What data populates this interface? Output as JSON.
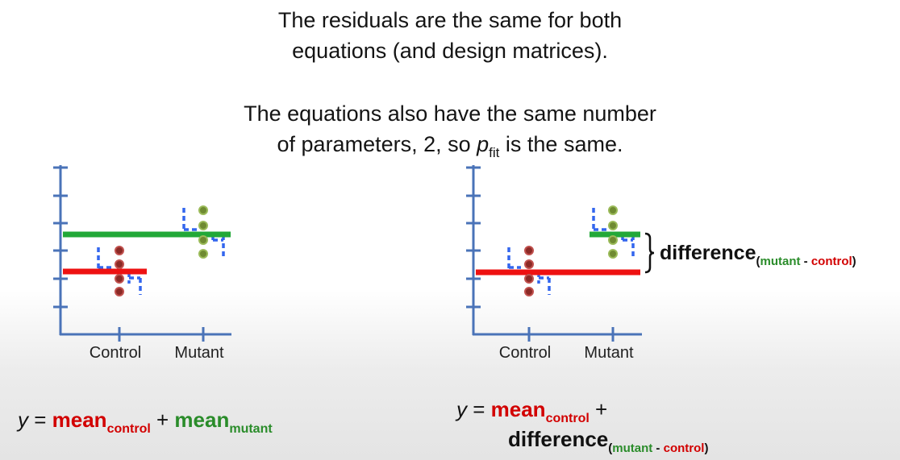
{
  "text": {
    "para1_line1": "The residuals are the same for both",
    "para1_line2": "equations (and design matrices).",
    "para2_line1": "The equations also have the same number",
    "para2_line2_pre": "of parameters, 2, so ",
    "para2_p": "p",
    "para2_sub": "fit",
    "para2_line2_post": " is the same."
  },
  "plots": {
    "left": {
      "xlabel_control": "Control",
      "xlabel_mutant": "Mutant"
    },
    "right": {
      "xlabel_control": "Control",
      "xlabel_mutant": "Mutant"
    }
  },
  "difference_label": {
    "main": "difference",
    "open": "(",
    "mutant": "mutant",
    "dash": " - ",
    "control": "control",
    "close": ")"
  },
  "equation_left": {
    "y": "y",
    "eq": " = ",
    "mean1": "mean",
    "sub1": "control",
    "plus": " + ",
    "mean2": "mean",
    "sub2": "mutant"
  },
  "equation_right": {
    "y": "y",
    "eq": " = ",
    "mean1": "mean",
    "sub1": "control",
    "plus": " +",
    "diff": "difference",
    "open": "(",
    "mutant": "mutant",
    "dash": " - ",
    "control": "control",
    "close": ")"
  },
  "colors": {
    "control": "#d20000",
    "mutant": "#2a8c2a",
    "axis": "#4a73b8",
    "residual": "#3366ee",
    "dot_control": "#8b2a26",
    "dot_mutant": "#6f8a32"
  }
}
